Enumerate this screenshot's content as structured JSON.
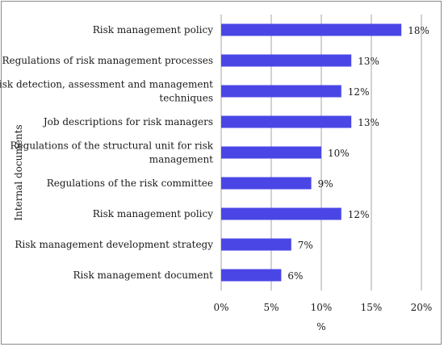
{
  "chart_data": {
    "type": "bar",
    "orientation": "horizontal",
    "title": "",
    "xlabel": "%",
    "ylabel": "Internal documents",
    "xlim": [
      0,
      20
    ],
    "xticks": [
      0,
      5,
      10,
      15,
      20
    ],
    "xtick_labels": [
      "0%",
      "5%",
      "10%",
      "15%",
      "20%"
    ],
    "grid": "vertical",
    "legend": "none",
    "bar_color": "#4a46e6",
    "categories": [
      [
        "Risk management policy"
      ],
      [
        "Regulations of risk management processes"
      ],
      [
        "Risk detection, assessment and management",
        "techniques"
      ],
      [
        "Job descriptions for risk managers"
      ],
      [
        "Regulations of the structural unit for risk",
        "management"
      ],
      [
        "Regulations of the risk committee"
      ],
      [
        "Risk management policy"
      ],
      [
        "Risk management development strategy"
      ],
      [
        "Risk management document"
      ]
    ],
    "values": [
      18,
      13,
      12,
      13,
      10,
      9,
      12,
      7,
      6
    ],
    "data_labels": [
      "18%",
      "13%",
      "12%",
      "13%",
      "10%",
      "9%",
      "12%",
      "7%",
      "6%"
    ]
  }
}
